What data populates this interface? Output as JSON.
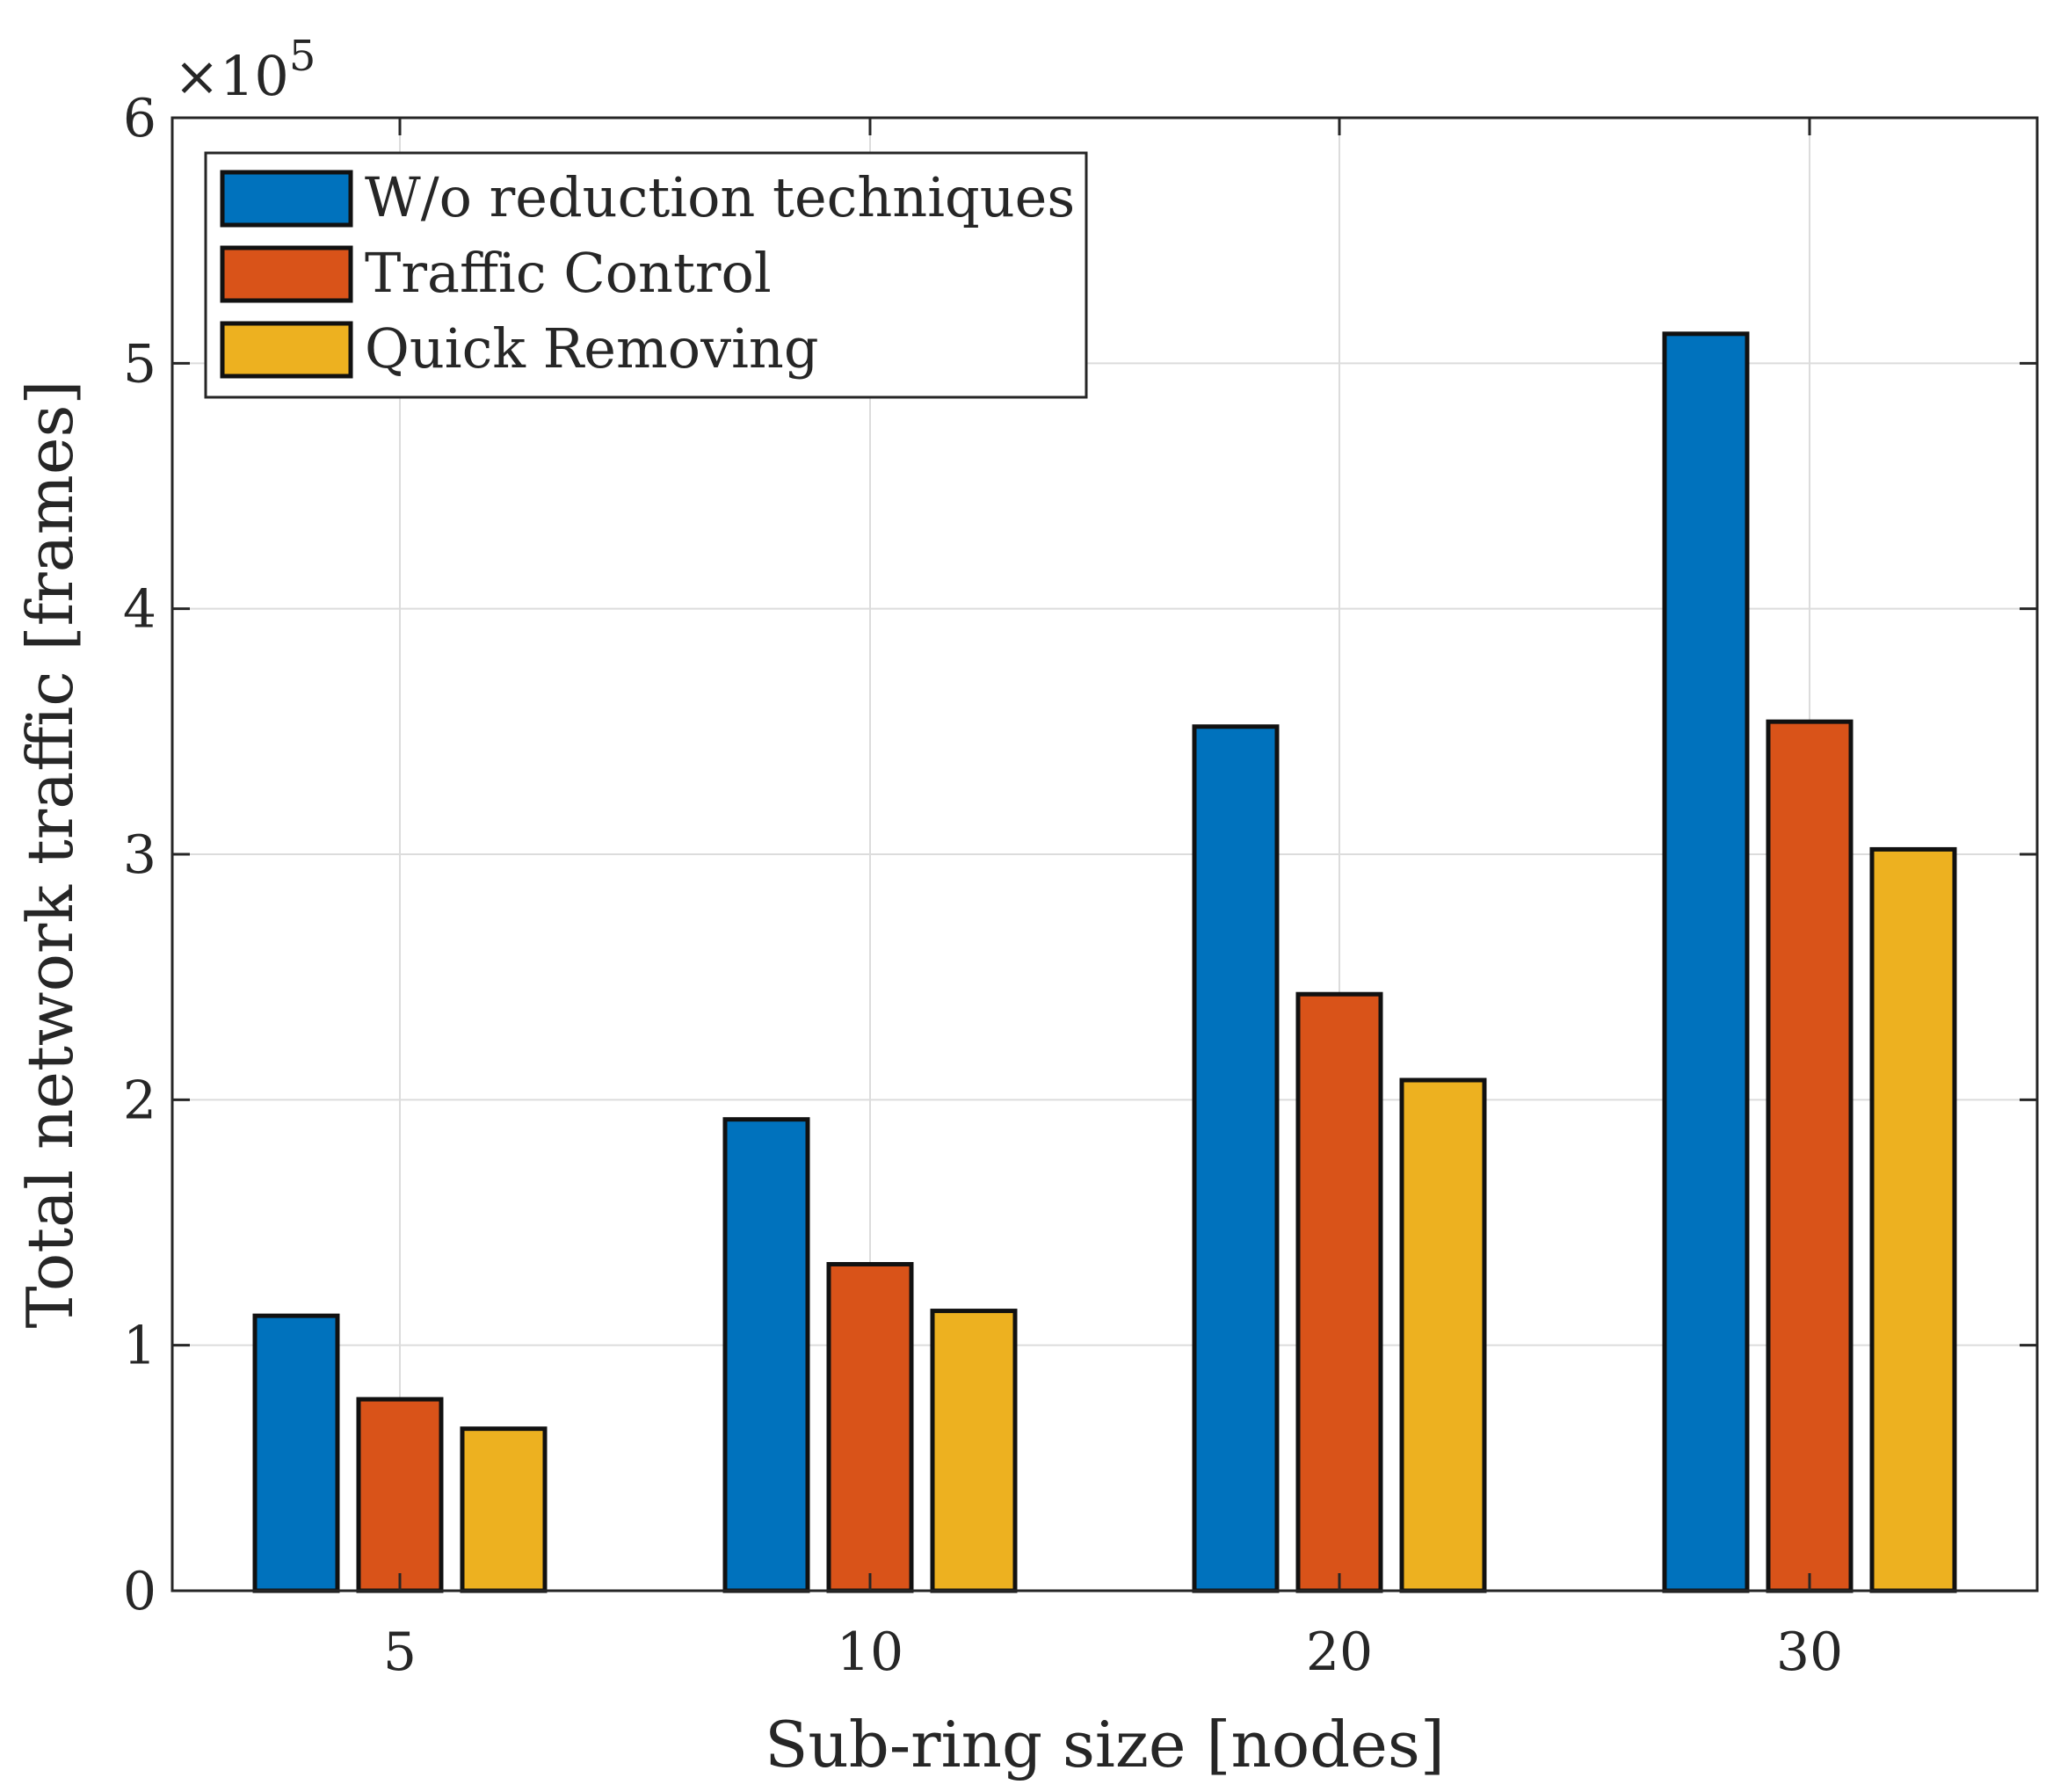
{
  "chart_data": {
    "type": "bar",
    "title": "",
    "xlabel": "Sub-ring size [nodes]",
    "ylabel": "Total network traffic [frames]",
    "categories": [
      "5",
      "10",
      "20",
      "30"
    ],
    "ylim": [
      0,
      6
    ],
    "yticks": [
      "0",
      "1",
      "2",
      "3",
      "4",
      "5",
      "6"
    ],
    "y_exponent_label": "×10",
    "y_exponent_power": "5",
    "grid": true,
    "legend_position": "top-left",
    "series": [
      {
        "name": "W/o reduction techniques",
        "color": "#0072BD",
        "values": [
          1.12,
          1.92,
          3.52,
          5.12
        ]
      },
      {
        "name": "Traffic Control",
        "color": "#D95319",
        "values": [
          0.78,
          1.33,
          2.43,
          3.54
        ]
      },
      {
        "name": "Quick Removing",
        "color": "#EDB120",
        "values": [
          0.66,
          1.14,
          2.08,
          3.02
        ]
      }
    ]
  }
}
